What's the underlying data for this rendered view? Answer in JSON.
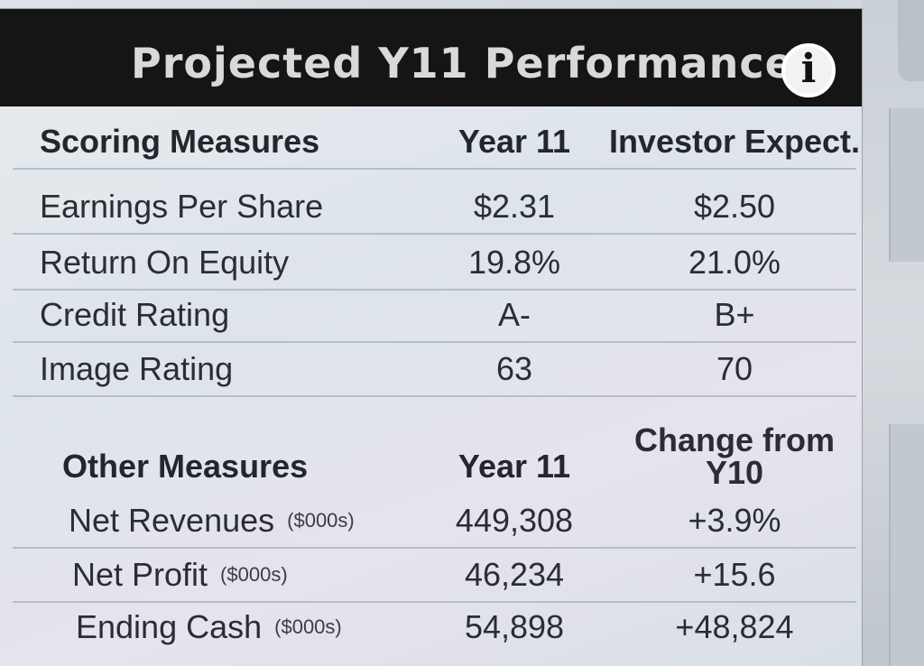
{
  "header": {
    "title": "Projected Y11 Performance",
    "info_icon": "ⅰ"
  },
  "scoring": {
    "col_measure": "Scoring Measures",
    "col_year": "Year 11",
    "col_expect": "Investor Expect.",
    "rows": [
      {
        "label": "Earnings Per Share",
        "year": "$2.31",
        "expect": "$2.50"
      },
      {
        "label": "Return On Equity",
        "year": "19.8%",
        "expect": "21.0%"
      },
      {
        "label": "Credit Rating",
        "year": "A-",
        "expect": "B+"
      },
      {
        "label": "Image Rating",
        "year": "63",
        "expect": "70"
      }
    ]
  },
  "other": {
    "col_measure": "Other Measures",
    "col_year": "Year 11",
    "col_change_1": "Change from",
    "col_change_2": "Y10",
    "rows": [
      {
        "label": "Net Revenues",
        "unit": "($000s)",
        "year": "449,308",
        "change": "+3.9%"
      },
      {
        "label": "Net Profit",
        "unit": "($000s)",
        "year": "46,234",
        "change": "+15.6"
      },
      {
        "label": "Ending Cash",
        "unit": "($000s)",
        "year": "54,898",
        "change": "+48,824"
      }
    ]
  },
  "colors": {
    "header_bg": "#151515",
    "header_text": "#d9d9d9",
    "panel_bg": "#dde4ea",
    "row_rule": "#b4bfc8"
  },
  "icons": [
    "info-icon"
  ]
}
